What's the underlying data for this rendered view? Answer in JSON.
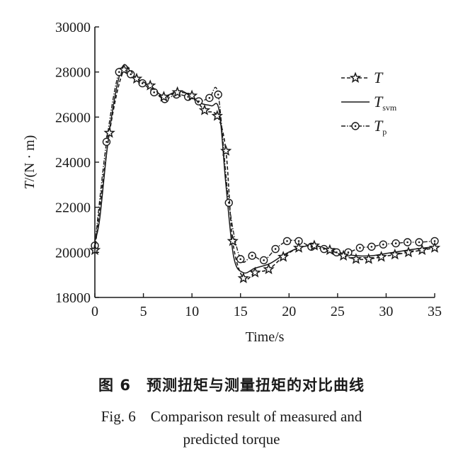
{
  "chart_data": {
    "type": "line",
    "xlabel": "Time/s",
    "ylabel": "T/(N·m)",
    "ylabel_parts": {
      "symbol": "T",
      "unit": "/(N · m)"
    },
    "xlim": [
      0,
      35
    ],
    "ylim": [
      18000,
      30000
    ],
    "x_ticks": [
      "0",
      "5",
      "10",
      "15",
      "20",
      "25",
      "30",
      "35"
    ],
    "y_ticks": [
      "18000",
      "20000",
      "22000",
      "24000",
      "26000",
      "28000",
      "30000"
    ],
    "grid": false,
    "legend_position": "top-right",
    "series": [
      {
        "name": "T",
        "legend_symbol": "T",
        "legend_sub": "",
        "style": "dashed-star",
        "x": [
          0,
          1.5,
          3,
          4.3,
          5.7,
          7.1,
          8.5,
          10,
          11.3,
          12.6,
          13.5,
          14.2,
          15.3,
          16.5,
          17.9,
          19.4,
          21,
          22.6,
          24.2,
          25.6,
          26.9,
          28.2,
          29.5,
          30.9,
          32.3,
          33.7,
          35
        ],
        "values": [
          20100,
          25300,
          28100,
          27700,
          27400,
          26900,
          27100,
          26950,
          26300,
          26050,
          24500,
          20500,
          18850,
          19100,
          19250,
          19800,
          20200,
          20300,
          20100,
          19850,
          19700,
          19700,
          19800,
          19900,
          20000,
          20100,
          20200
        ]
      },
      {
        "name": "Tsvm",
        "legend_symbol": "T",
        "legend_sub": "svm",
        "style": "solid",
        "x": [
          0,
          0.5,
          1.5,
          2.8,
          4,
          5.5,
          7,
          8.2,
          9,
          10,
          11,
          12,
          12.8,
          13.5,
          14.3,
          15.3,
          16.5,
          18,
          19.5,
          21,
          22.5,
          24,
          25.5,
          27,
          28.5,
          30,
          31.5,
          33,
          35
        ],
        "values": [
          20500,
          21500,
          25400,
          28200,
          27800,
          27400,
          26950,
          27100,
          27150,
          26900,
          26600,
          26500,
          26300,
          23000,
          19800,
          19100,
          19300,
          19500,
          19900,
          20200,
          20300,
          20150,
          19950,
          19850,
          19850,
          19950,
          20050,
          20150,
          20250
        ]
      },
      {
        "name": "Tp",
        "legend_symbol": "T",
        "legend_sub": "p",
        "style": "dashdot-circle",
        "x": [
          0,
          1.2,
          2.5,
          3.7,
          4.9,
          6.1,
          7.2,
          8.4,
          9.6,
          10.7,
          11.8,
          12.7,
          13.8,
          15,
          16.2,
          17.4,
          18.6,
          19.8,
          21,
          22.3,
          23.6,
          24.9,
          26.1,
          27.3,
          28.5,
          29.7,
          31,
          32.2,
          33.4,
          35
        ],
        "values": [
          20300,
          24900,
          28000,
          27900,
          27500,
          27100,
          26800,
          27000,
          26900,
          26700,
          26850,
          27000,
          22200,
          19700,
          19850,
          19650,
          20150,
          20500,
          20500,
          20250,
          20150,
          20000,
          20000,
          20200,
          20250,
          20350,
          20400,
          20450,
          20450,
          20500
        ]
      }
    ]
  },
  "captions": {
    "cn": "图 6　预测扭矩与测量扭矩的对比曲线",
    "en_line1": "Fig. 6　Comparison result of measured and",
    "en_line2": "predicted torque"
  },
  "colors": {
    "axis": "#1a1a1a",
    "series": "#1a1a1a",
    "background": "#ffffff"
  }
}
